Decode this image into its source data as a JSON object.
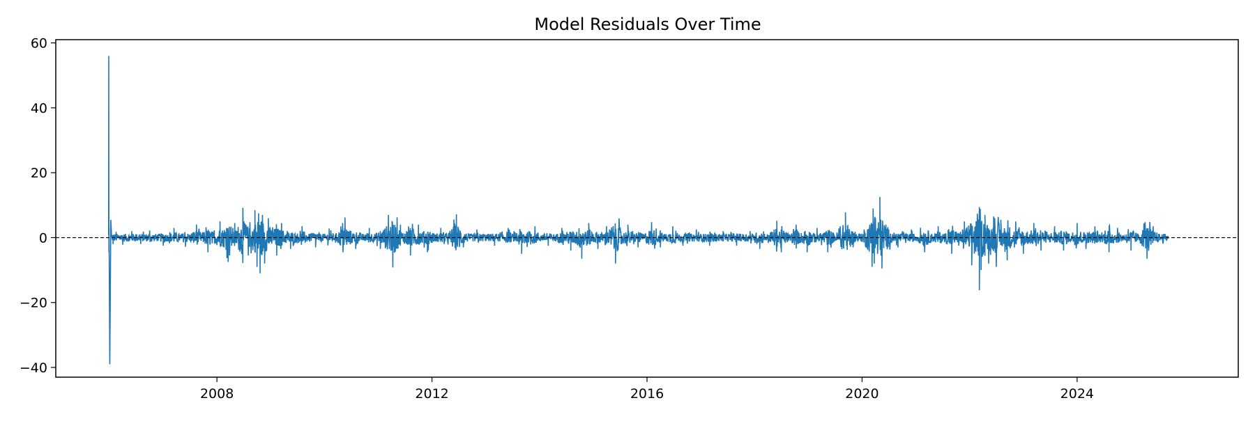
{
  "chart_data": {
    "type": "line",
    "title": "Model Residuals Over Time",
    "xlabel": "",
    "ylabel": "",
    "x_axis": {
      "type": "date",
      "range": [
        "2005-01-01",
        "2026-12-31"
      ],
      "ticks": [
        "2008",
        "2012",
        "2016",
        "2020",
        "2024"
      ]
    },
    "y_axis": {
      "range": [
        -43,
        61
      ],
      "ticks": [
        -40,
        -20,
        0,
        20,
        40,
        60
      ]
    },
    "grid": false,
    "legend": "none",
    "series": [
      {
        "color": "#1f77b4",
        "note_start": "2005-12-26",
        "note_end": "2025-09-10",
        "points": [
          [
            "2005-12-26",
            0.8
          ],
          [
            "2005-12-27",
            56.0
          ],
          [
            "2005-12-28",
            -4.5
          ],
          [
            "2005-12-29",
            3.0
          ],
          [
            "2006-01-03",
            -39.0
          ],
          [
            "2006-01-10",
            5.5
          ],
          [
            "2006-01-25",
            -2.0
          ],
          [
            "2006-02-15",
            1.8
          ],
          [
            "2006-04-01",
            -2.2
          ],
          [
            "2006-06-01",
            2.0
          ],
          [
            "2006-08-01",
            -2.0
          ],
          [
            "2006-10-01",
            2.2
          ],
          [
            "2007-01-01",
            -2.5
          ],
          [
            "2007-03-15",
            3.0
          ],
          [
            "2007-06-01",
            -2.8
          ],
          [
            "2007-08-15",
            4.0
          ],
          [
            "2007-11-01",
            -4.5
          ],
          [
            "2008-01-22",
            5.0
          ],
          [
            "2008-03-17",
            -7.5
          ],
          [
            "2008-05-01",
            4.5
          ],
          [
            "2008-06-25",
            9.2
          ],
          [
            "2008-08-01",
            -5.5
          ],
          [
            "2008-09-15",
            8.5
          ],
          [
            "2008-09-29",
            -9.0
          ],
          [
            "2008-10-10",
            7.5
          ],
          [
            "2008-10-20",
            -11.0
          ],
          [
            "2008-11-05",
            7.0
          ],
          [
            "2008-11-20",
            -8.0
          ],
          [
            "2008-12-15",
            6.0
          ],
          [
            "2009-02-10",
            -5.5
          ],
          [
            "2009-03-15",
            4.5
          ],
          [
            "2009-05-15",
            -3.5
          ],
          [
            "2009-08-01",
            3.5
          ],
          [
            "2009-11-01",
            -3.0
          ],
          [
            "2010-02-01",
            2.8
          ],
          [
            "2010-05-06",
            -4.5
          ],
          [
            "2010-05-20",
            6.2
          ],
          [
            "2010-08-01",
            -3.5
          ],
          [
            "2010-11-01",
            3.0
          ],
          [
            "2011-01-15",
            -3.5
          ],
          [
            "2011-03-11",
            7.0
          ],
          [
            "2011-04-10",
            -9.2
          ],
          [
            "2011-06-01",
            4.0
          ],
          [
            "2011-08-08",
            -5.5
          ],
          [
            "2011-10-01",
            4.0
          ],
          [
            "2011-12-01",
            -4.5
          ],
          [
            "2012-03-01",
            3.0
          ],
          [
            "2012-06-15",
            7.2
          ],
          [
            "2012-08-01",
            -3.0
          ],
          [
            "2012-11-01",
            2.5
          ],
          [
            "2013-03-01",
            -2.5
          ],
          [
            "2013-06-01",
            3.0
          ],
          [
            "2013-09-01",
            -5.0
          ],
          [
            "2013-12-01",
            3.5
          ],
          [
            "2014-03-01",
            -2.5
          ],
          [
            "2014-06-01",
            3.0
          ],
          [
            "2014-08-01",
            -4.0
          ],
          [
            "2014-10-15",
            -6.5
          ],
          [
            "2014-12-01",
            4.5
          ],
          [
            "2015-02-01",
            -3.5
          ],
          [
            "2015-04-01",
            3.5
          ],
          [
            "2015-06-01",
            -8.0
          ],
          [
            "2015-08-24",
            4.0
          ],
          [
            "2015-11-01",
            -3.0
          ],
          [
            "2016-02-01",
            4.8
          ],
          [
            "2016-04-01",
            -3.0
          ],
          [
            "2016-06-24",
            3.5
          ],
          [
            "2016-09-01",
            -2.5
          ],
          [
            "2016-12-01",
            2.5
          ],
          [
            "2017-03-01",
            -2.5
          ],
          [
            "2017-06-01",
            2.0
          ],
          [
            "2017-09-01",
            -2.5
          ],
          [
            "2017-12-01",
            2.0
          ],
          [
            "2018-02-05",
            -3.5
          ],
          [
            "2018-06-01",
            5.2
          ],
          [
            "2018-07-01",
            -4.5
          ],
          [
            "2018-10-10",
            4.0
          ],
          [
            "2018-12-24",
            -4.5
          ],
          [
            "2019-03-01",
            3.0
          ],
          [
            "2019-05-13",
            -4.5
          ],
          [
            "2019-08-05",
            3.5
          ],
          [
            "2019-09-10",
            7.8
          ],
          [
            "2019-11-01",
            -3.0
          ],
          [
            "2020-01-15",
            2.5
          ],
          [
            "2020-03-09",
            -9.0
          ],
          [
            "2020-03-16",
            9.0
          ],
          [
            "2020-03-24",
            -8.0
          ],
          [
            "2020-04-01",
            6.0
          ],
          [
            "2020-04-15",
            -5.0
          ],
          [
            "2020-05-01",
            12.5
          ],
          [
            "2020-05-15",
            -9.5
          ],
          [
            "2020-06-11",
            4.0
          ],
          [
            "2020-09-01",
            -3.0
          ],
          [
            "2020-12-01",
            2.5
          ],
          [
            "2021-03-01",
            -4.5
          ],
          [
            "2021-06-01",
            3.5
          ],
          [
            "2021-09-01",
            -5.0
          ],
          [
            "2021-11-26",
            5.0
          ],
          [
            "2022-01-15",
            -8.5
          ],
          [
            "2022-02-24",
            6.0
          ],
          [
            "2022-03-08",
            -16.2
          ],
          [
            "2022-03-10",
            8.5
          ],
          [
            "2022-03-20",
            -10.0
          ],
          [
            "2022-04-15",
            7.0
          ],
          [
            "2022-05-10",
            -8.0
          ],
          [
            "2022-06-13",
            6.5
          ],
          [
            "2022-07-01",
            -9.0
          ],
          [
            "2022-08-01",
            5.5
          ],
          [
            "2022-09-13",
            -7.0
          ],
          [
            "2022-11-10",
            5.0
          ],
          [
            "2023-01-01",
            -5.0
          ],
          [
            "2023-03-13",
            4.5
          ],
          [
            "2023-05-01",
            -4.0
          ],
          [
            "2023-08-01",
            3.5
          ],
          [
            "2023-10-01",
            -4.0
          ],
          [
            "2024-01-01",
            4.5
          ],
          [
            "2024-03-01",
            -3.5
          ],
          [
            "2024-05-01",
            3.5
          ],
          [
            "2024-08-05",
            -4.5
          ],
          [
            "2024-10-01",
            3.0
          ],
          [
            "2025-01-01",
            -4.0
          ],
          [
            "2025-04-07",
            4.8
          ],
          [
            "2025-04-20",
            -6.5
          ],
          [
            "2025-06-01",
            3.5
          ],
          [
            "2025-09-10",
            0.5
          ]
        ]
      }
    ],
    "reference_line": {
      "y": 0,
      "style": "dashed",
      "color": "#000000"
    }
  }
}
